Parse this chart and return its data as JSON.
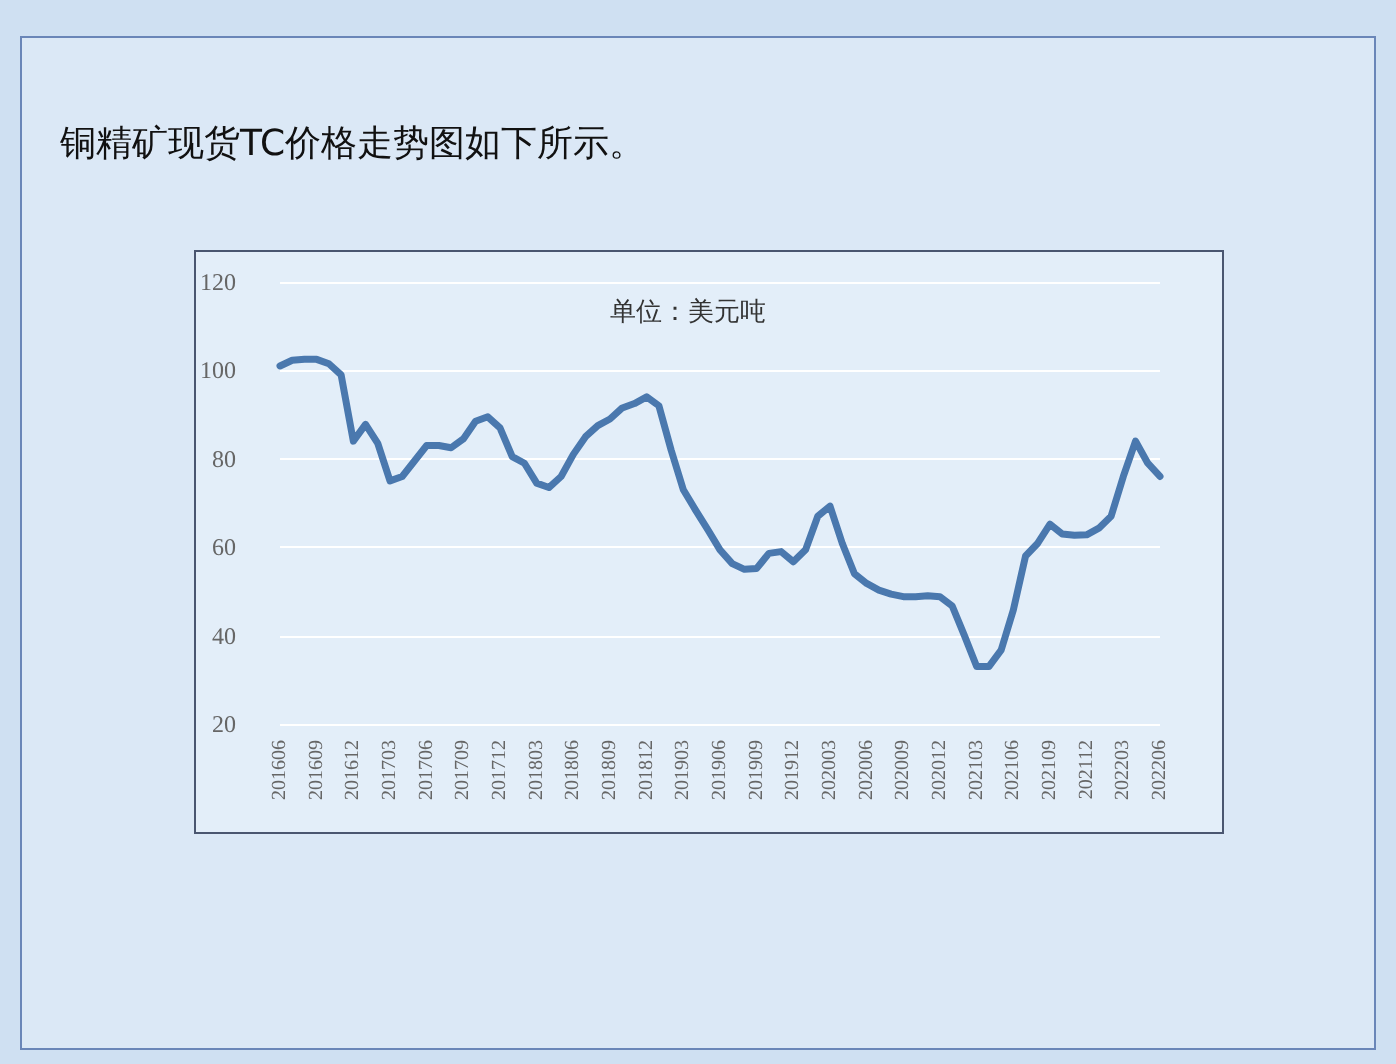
{
  "chart_data": {
    "type": "line",
    "title": "铜精矿现货TC价格走势图如下所示。",
    "subtitle": "单位：美元吨",
    "categories": [
      "201606",
      null,
      null,
      "201609",
      null,
      null,
      "201612",
      null,
      null,
      "201703",
      null,
      null,
      "201706",
      null,
      null,
      "201709",
      null,
      null,
      "201712",
      null,
      null,
      "201803",
      null,
      null,
      "201806",
      null,
      null,
      "201809",
      null,
      null,
      "201812",
      null,
      null,
      "201903",
      null,
      null,
      "201906",
      null,
      null,
      "201909",
      null,
      null,
      "201912",
      null,
      null,
      "202003",
      null,
      null,
      "202006",
      null,
      null,
      "202009",
      null,
      null,
      "202012",
      null,
      null,
      "202103",
      null,
      null,
      "202106",
      null,
      null,
      "202109",
      null,
      null,
      "202112",
      null,
      null,
      "202203",
      null,
      null,
      "202206"
    ],
    "series": [
      {
        "color": "#4a78ae",
        "values": [
          101,
          102.3,
          102.5,
          102.5,
          101.5,
          99,
          84,
          87.8,
          83.5,
          75,
          76,
          79.5,
          83,
          83,
          82.5,
          84.5,
          88.5,
          89.5,
          87,
          80.5,
          79,
          74.5,
          73.5,
          76,
          81,
          85,
          87.5,
          89,
          91.5,
          92.5,
          94,
          92,
          82,
          73,
          68.4,
          64,
          59.4,
          56.3,
          55,
          55.2,
          58.6,
          59,
          56.7,
          59.4,
          67,
          69.3,
          60.9,
          54,
          51.8,
          50.3,
          49.4,
          48.8,
          48.8,
          49,
          48.8,
          46.7,
          40,
          33,
          33,
          36.7,
          45.8,
          58,
          60.9,
          65.2,
          63,
          62.7,
          62.8,
          64.3,
          67,
          76,
          84,
          79,
          76
        ]
      }
    ],
    "ylim": [
      20,
      120
    ],
    "yticks": [
      20,
      40,
      60,
      80,
      100,
      120
    ],
    "grid": "y",
    "marker": "none",
    "line_style": "solid"
  }
}
